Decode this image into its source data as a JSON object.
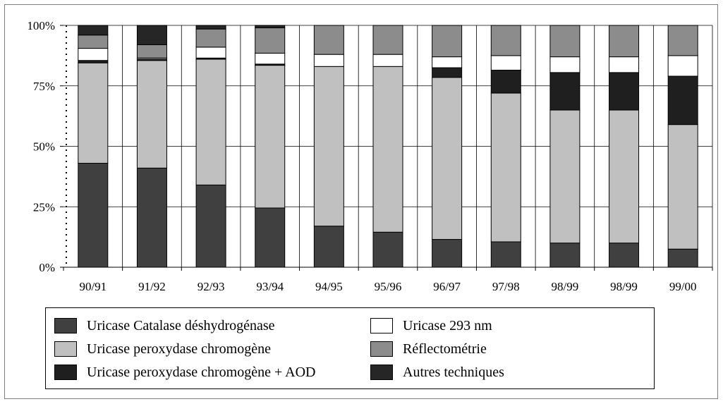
{
  "chart_data": {
    "type": "bar",
    "stacked": true,
    "percent": true,
    "categories": [
      "90/91",
      "91/92",
      "92/93",
      "93/94",
      "94/95",
      "95/96",
      "96/97",
      "97/98",
      "98/99",
      "98/99",
      "99/00"
    ],
    "y_tick_labels": [
      "0%",
      "25%",
      "50%",
      "75%",
      "100%"
    ],
    "y_ticks": [
      0,
      25,
      50,
      75,
      100
    ],
    "ylim": [
      0,
      100
    ],
    "grid": true,
    "legend_position": "bottom",
    "series": [
      {
        "name": "Uricase Catalase déshydrogénase",
        "color": "#404040",
        "values": [
          43,
          41,
          34,
          24.5,
          17,
          14.5,
          11.5,
          10.5,
          10,
          10,
          7.5
        ]
      },
      {
        "name": "Uricase peroxydase chromogène",
        "color": "#c0c0c0",
        "values": [
          41.5,
          44.5,
          52,
          59,
          66,
          68.5,
          67,
          61.5,
          55,
          55,
          51.5
        ]
      },
      {
        "name": "Uricase peroxydase chromogène + AOD",
        "color": "#1f1f1f",
        "values": [
          1,
          0.5,
          0.5,
          0.5,
          0,
          0,
          4,
          9.5,
          15.5,
          15.5,
          20
        ]
      },
      {
        "name": "Uricase 293 nm",
        "color": "#ffffff",
        "values": [
          5,
          0.5,
          4.5,
          4.5,
          5,
          5,
          4.5,
          6,
          6.5,
          6.5,
          8.5
        ]
      },
      {
        "name": "Réflectométrie",
        "color": "#8c8c8c",
        "values": [
          5.5,
          5.5,
          7.5,
          10.5,
          12,
          12,
          13,
          12.5,
          13,
          13,
          12.5
        ]
      },
      {
        "name": "Autres techniques",
        "color": "#262626",
        "values": [
          4,
          8,
          1.5,
          1,
          0,
          0,
          0,
          0,
          0,
          0,
          0
        ]
      }
    ]
  },
  "legend": {
    "items": [
      {
        "label": "Uricase Catalase déshydrogénase",
        "color": "#404040"
      },
      {
        "label": "Uricase 293 nm",
        "color": "#ffffff"
      },
      {
        "label": "Uricase peroxydase chromogène",
        "color": "#c0c0c0"
      },
      {
        "label": "Réflectométrie",
        "color": "#8c8c8c"
      },
      {
        "label": "Uricase peroxydase chromogène + AOD",
        "color": "#1f1f1f"
      },
      {
        "label": "Autres techniques",
        "color": "#262626"
      }
    ]
  }
}
